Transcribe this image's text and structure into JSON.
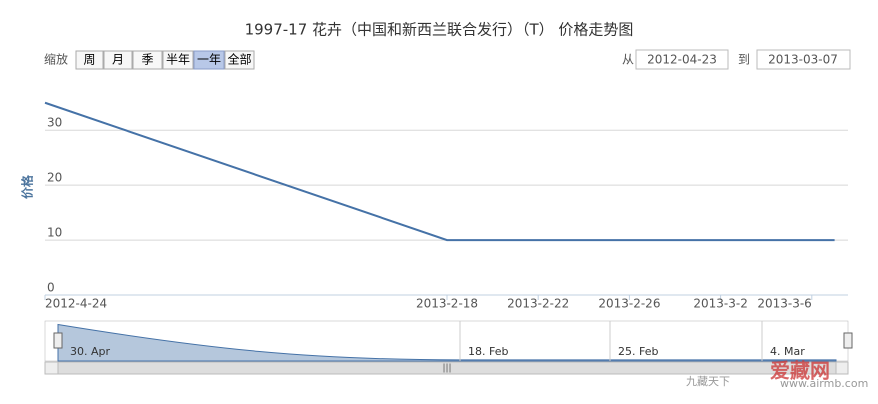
{
  "chart_data": {
    "type": "line",
    "title": "1997-17 花卉（中国和新西兰联合发行）（T） 价格走势图",
    "y_label": "价格",
    "zoom_label": "缩放",
    "zoom_buttons": [
      "周",
      "月",
      "季",
      "半年",
      "一年",
      "全部"
    ],
    "zoom_selected": "一年",
    "from_label": "从",
    "from_date": "2012-04-23",
    "to_label": "到",
    "to_date": "2013-03-07",
    "categories": [
      "2012-4-24",
      "2013-2-18",
      null,
      null,
      null,
      "2013-2-22",
      null,
      null,
      null,
      "2013-2-26",
      null,
      null,
      null,
      "2013-3-2",
      null,
      null,
      null,
      "2013-3-6",
      null
    ],
    "series": [
      {
        "name": "价格",
        "color": "#4572a7",
        "values": [
          35,
          10,
          10,
          10,
          10,
          10,
          10,
          10,
          10,
          10,
          10,
          10,
          10,
          10,
          10,
          10,
          10,
          10,
          10
        ]
      }
    ],
    "ylim": [
      0,
      35.5
    ],
    "yticks": [
      0,
      10,
      20,
      30
    ],
    "grid": true,
    "navigator_labels": [
      "30. Apr",
      "18. Feb",
      "25. Feb",
      "4. Mar"
    ],
    "watermark": "爱藏网",
    "watermark_url": "www.airmb.com",
    "watermark_small": "九藏天下"
  }
}
